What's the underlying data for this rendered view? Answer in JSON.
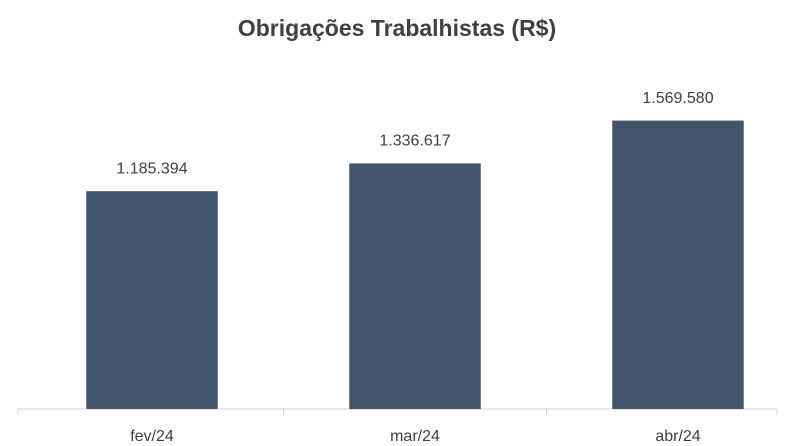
{
  "chart_data": {
    "type": "bar",
    "title": "Obrigações Trabalhistas (R$)",
    "categories": [
      "fev/24",
      "mar/24",
      "abr/24"
    ],
    "values": [
      1185394,
      1336617,
      1569580
    ],
    "value_labels": [
      "1.185.394",
      "1.336.617",
      "1.569.580"
    ],
    "color": "#44546a",
    "ylim": [
      0,
      1600000
    ]
  }
}
